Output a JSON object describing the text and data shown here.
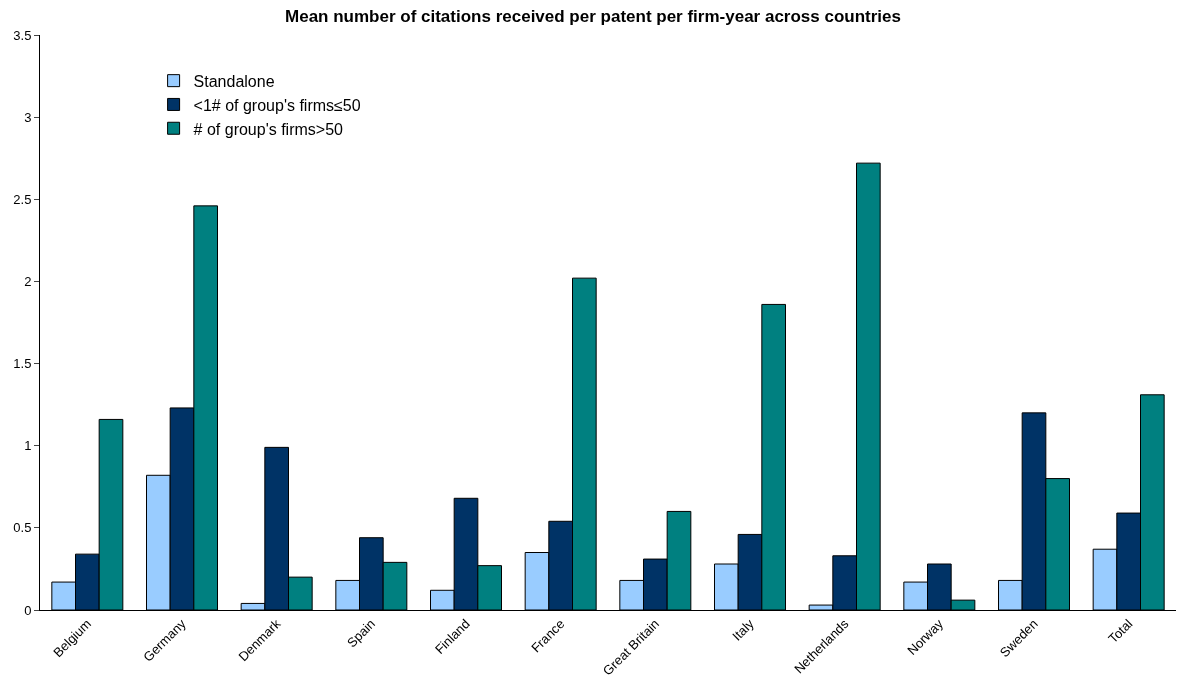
{
  "chart_data": {
    "type": "bar",
    "title": "Mean number of citations received per patent per firm-year across countries",
    "categories": [
      "Belgium",
      "Germany",
      "Denmark",
      "Spain",
      "Finland",
      "France",
      "Great Britain",
      "Italy",
      "Netherlands",
      "Norway",
      "Sweden",
      "Total"
    ],
    "series": [
      {
        "name": "Standalone",
        "color": "#99ccff",
        "values": [
          0.17,
          0.82,
          0.04,
          0.18,
          0.12,
          0.35,
          0.18,
          0.28,
          0.03,
          0.17,
          0.18,
          0.37
        ]
      },
      {
        "name": "<1# of group's firms≤50",
        "color": "#003366",
        "values": [
          0.34,
          1.23,
          0.99,
          0.44,
          0.68,
          0.54,
          0.31,
          0.46,
          0.33,
          0.28,
          1.2,
          0.59
        ]
      },
      {
        "name": "# of group's firms>50",
        "color": "#008080",
        "values": [
          1.16,
          2.46,
          0.2,
          0.29,
          0.27,
          2.02,
          0.6,
          1.86,
          2.72,
          0.06,
          0.8,
          1.31
        ]
      }
    ],
    "ylim": [
      0,
      3.5
    ],
    "yticks": [
      {
        "value": 0,
        "label": "0"
      },
      0.5,
      1,
      1.5,
      2,
      2.5,
      3,
      3.5
    ],
    "legend": "top left"
  }
}
